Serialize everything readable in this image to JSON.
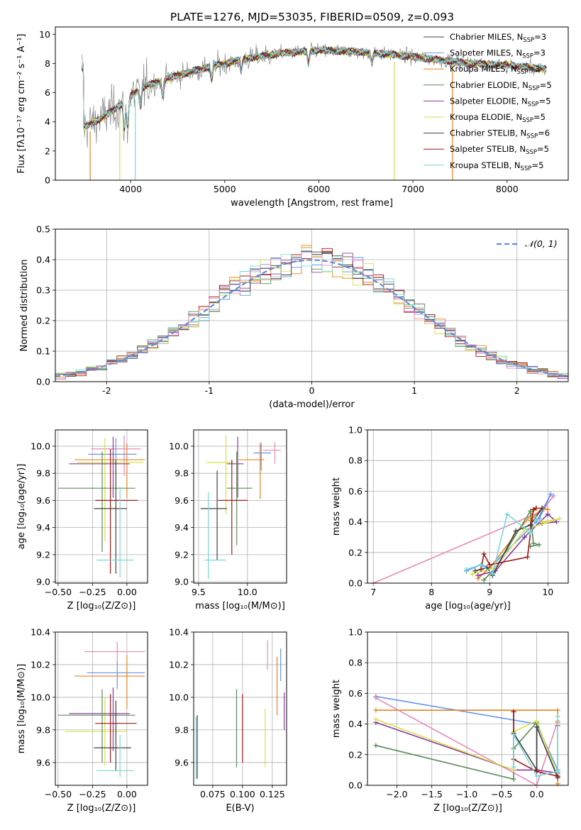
{
  "title": "PLATE=1276, MJD=53035, FIBERID=0509, z=0.093",
  "chart_data": [
    {
      "type": "line",
      "id": "spectrum",
      "title": "PLATE=1276, MJD=53035, FIBERID=0509, z=0.093",
      "xlabel": "wavelength [Angstrom, rest frame]",
      "ylabel": "Flux [fλ10⁻¹⁷ erg cm⁻² s⁻¹ A⁻¹]",
      "xlim": [
        3200,
        8650
      ],
      "ylim": [
        0,
        10.5
      ],
      "xticks": [
        4000,
        5000,
        6000,
        7000,
        8000
      ],
      "yticks": [
        0,
        2,
        4,
        6,
        8,
        10
      ],
      "grid": false,
      "legend_position": "top-right",
      "data_shape": [
        {
          "x": 3500,
          "y": 3.6
        },
        {
          "x": 3700,
          "y": 4.3
        },
        {
          "x": 3900,
          "y": 5.2
        },
        {
          "x": 4100,
          "y": 6.3
        },
        {
          "x": 4400,
          "y": 7.0
        },
        {
          "x": 4800,
          "y": 7.7
        },
        {
          "x": 5200,
          "y": 8.3
        },
        {
          "x": 5600,
          "y": 8.7
        },
        {
          "x": 6000,
          "y": 8.9
        },
        {
          "x": 6400,
          "y": 8.8
        },
        {
          "x": 6800,
          "y": 8.6
        },
        {
          "x": 7200,
          "y": 8.3
        },
        {
          "x": 7600,
          "y": 8.0
        },
        {
          "x": 8000,
          "y": 7.9
        },
        {
          "x": 8400,
          "y": 7.6
        }
      ],
      "series": [
        {
          "name": "Chabrier MILES, N_SSP=3",
          "color": "#404040"
        },
        {
          "name": "Salpeter MILES, N_SSP=3",
          "color": "#6495ed"
        },
        {
          "name": "Kroupa MILES, N_SSP=3",
          "color": "#e8821e"
        },
        {
          "name": "Chabrier ELODIE, N_SSP=5",
          "color": "#5a8a5a"
        },
        {
          "name": "Salpeter ELODIE, N_SSP=5",
          "color": "#8b3a9e"
        },
        {
          "name": "Kroupa ELODIE, N_SSP=5",
          "color": "#d6e04a"
        },
        {
          "name": "Chabrier STELIB, N_SSP=6",
          "color": "#3c3c3c"
        },
        {
          "name": "Salpeter STELIB, N_SSP=5",
          "color": "#a01818"
        },
        {
          "name": "Kroupa STELIB, N_SSP=5",
          "color": "#7ad8d8"
        }
      ]
    },
    {
      "type": "line",
      "id": "residuals",
      "xlabel": "(data-model)/error",
      "ylabel": "Normed distribution",
      "xlim": [
        -2.5,
        2.5
      ],
      "ylim": [
        0,
        0.5
      ],
      "xticks": [
        -2,
        -1,
        0,
        1,
        2
      ],
      "yticks": [
        0.0,
        0.1,
        0.2,
        0.3,
        0.4,
        0.5
      ],
      "grid": true,
      "legend_position": "top-right",
      "legend": "𝒩(0, 1)",
      "bin_width": 0.1,
      "histogram_colors": [
        "#6495ed",
        "#e8821e",
        "#5a8a5a",
        "#8b3a9e",
        "#d6e04a",
        "#404040",
        "#a01818",
        "#7ad8d8",
        "#e889b8"
      ]
    },
    {
      "type": "scatter",
      "id": "age-vs-Z",
      "xlabel": "Z [log₁₀(Z/Z⊙)]",
      "ylabel": "age  [log₁₀(age/yr)]",
      "xlim": [
        -0.52,
        0.15
      ],
      "ylim": [
        8.99,
        10.12
      ],
      "xticks": [
        -0.5,
        -0.25,
        0.0
      ],
      "xtick_labels": [
        "−0.50",
        "−0.25",
        "0.00"
      ],
      "yticks": [
        9.0,
        9.2,
        9.4,
        9.6,
        9.8,
        10.0
      ],
      "ytick_labels": [
        "9.0",
        "9.2",
        "9.4",
        "9.6",
        "9.8",
        "10.0"
      ],
      "grid": true,
      "points": [
        {
          "x": -0.02,
          "y": 9.98,
          "xerr": [
            0.24,
            0.12
          ],
          "yerr": [
            0.2,
            0.1
          ],
          "color": "#e889b8"
        },
        {
          "x": -0.08,
          "y": 9.94,
          "xerr": [
            0.2,
            0.15
          ],
          "yerr": [
            0.16,
            0.12
          ],
          "color": "#6495ed"
        },
        {
          "x": 0.0,
          "y": 9.9,
          "xerr": [
            0.38,
            0.13
          ],
          "yerr": [
            0.28,
            0.12
          ],
          "color": "#e8821e"
        },
        {
          "x": -0.16,
          "y": 9.88,
          "xerr": [
            0.2,
            0.28
          ],
          "yerr": [
            0.58,
            0.18
          ],
          "color": "#d6e04a"
        },
        {
          "x": -0.1,
          "y": 9.87,
          "xerr": [
            0.32,
            0.12
          ],
          "yerr": [
            0.25,
            0.2
          ],
          "color": "#8b3a9e"
        },
        {
          "x": -0.18,
          "y": 9.69,
          "xerr": [
            0.32,
            0.24
          ],
          "yerr": [
            0.47,
            0.27
          ],
          "color": "#5a8a5a"
        },
        {
          "x": -0.12,
          "y": 9.6,
          "xerr": [
            0.11,
            0.2
          ],
          "yerr": [
            0.54,
            0.38
          ],
          "color": "#a01818"
        },
        {
          "x": -0.08,
          "y": 9.54,
          "xerr": [
            0.16,
            0.08
          ],
          "yerr": [
            0.48,
            0.36
          ],
          "color": "#404040"
        },
        {
          "x": -0.05,
          "y": 9.16,
          "xerr": [
            0.17,
            0.1
          ],
          "yerr": [
            0.13,
            0.54
          ],
          "color": "#7ad8d8"
        }
      ]
    },
    {
      "type": "scatter",
      "id": "age-vs-mass",
      "xlabel": "mass [log₁₀(M/M⊙)]",
      "xlim": [
        9.45,
        10.4
      ],
      "ylim": [
        8.99,
        10.12
      ],
      "xticks": [
        9.5,
        10.0
      ],
      "xtick_labels": [
        "9.5",
        "10.0"
      ],
      "yticks": [
        9.0,
        9.2,
        9.4,
        9.6,
        9.8,
        10.0
      ],
      "ytick_labels": [
        "9.0",
        "9.2",
        "9.4",
        "9.6",
        "9.8",
        "10.0"
      ],
      "grid": true,
      "points": [
        {
          "x": 10.28,
          "y": 9.97,
          "xerr": [
            0.12,
            0.06
          ],
          "yerr": [
            0.1,
            0.06
          ],
          "color": "#e889b8"
        },
        {
          "x": 10.14,
          "y": 9.95,
          "xerr": [
            0.08,
            0.1
          ],
          "yerr": [
            0.13,
            0.08
          ],
          "color": "#6495ed"
        },
        {
          "x": 10.13,
          "y": 9.9,
          "xerr": [
            0.22,
            0.04
          ],
          "yerr": [
            0.29,
            0.12
          ],
          "color": "#e8821e"
        },
        {
          "x": 9.78,
          "y": 9.88,
          "xerr": [
            0.2,
            0.08
          ],
          "yerr": [
            0.38,
            0.2
          ],
          "color": "#d6e04a"
        },
        {
          "x": 9.9,
          "y": 9.87,
          "xerr": [
            0.11,
            0.06
          ],
          "yerr": [
            0.25,
            0.2
          ],
          "color": "#8b3a9e"
        },
        {
          "x": 9.89,
          "y": 9.69,
          "xerr": [
            0.1,
            0.16
          ],
          "yerr": [
            0.42,
            0.27
          ],
          "color": "#5a8a5a"
        },
        {
          "x": 9.84,
          "y": 9.6,
          "xerr": [
            0.14,
            0.16
          ],
          "yerr": [
            0.4,
            0.3
          ],
          "color": "#a01818"
        },
        {
          "x": 9.69,
          "y": 9.54,
          "xerr": [
            0.17,
            0.1
          ],
          "yerr": [
            0.38,
            0.28
          ],
          "color": "#404040"
        },
        {
          "x": 9.6,
          "y": 9.16,
          "xerr": [
            0.04,
            0.18
          ],
          "yerr": [
            0.14,
            0.5
          ],
          "color": "#7ad8d8"
        }
      ]
    },
    {
      "type": "line",
      "id": "weight-vs-age",
      "xlabel": "age  [log₁₀(age/yr)]",
      "ylabel": "mass weight",
      "xlim": [
        6.9,
        10.35
      ],
      "ylim": [
        0,
        1.0
      ],
      "xticks": [
        7,
        8,
        9,
        10
      ],
      "yticks": [
        0.0,
        0.2,
        0.4,
        0.6,
        0.8,
        1.0
      ],
      "grid": true,
      "series": [
        {
          "color": "#e889b8",
          "x": [
            7.0,
            9.9,
            10.1,
            9.95
          ],
          "y": [
            0.0,
            0.47,
            0.57,
            0.5
          ]
        },
        {
          "color": "#6495ed",
          "x": [
            8.6,
            8.85,
            9.0,
            9.8,
            10.05,
            9.85
          ],
          "y": [
            0.08,
            0.12,
            0.1,
            0.4,
            0.58,
            0.42
          ]
        },
        {
          "color": "#e8821e",
          "x": [
            8.8,
            9.0,
            9.8,
            10.0,
            9.9,
            9.7
          ],
          "y": [
            0.03,
            0.1,
            0.49,
            0.48,
            0.49,
            0.41
          ]
        },
        {
          "color": "#5a8a5a",
          "x": [
            8.9,
            9.1,
            9.7,
            9.75,
            9.85,
            9.7
          ],
          "y": [
            0.02,
            0.1,
            0.47,
            0.26,
            0.25,
            0.24
          ]
        },
        {
          "color": "#8b3a9e",
          "x": [
            8.8,
            9.1,
            9.6,
            10.0,
            10.15,
            9.9
          ],
          "y": [
            0.05,
            0.08,
            0.3,
            0.45,
            0.4,
            0.39
          ]
        },
        {
          "color": "#d6e04a",
          "x": [
            8.7,
            9.1,
            9.6,
            10.2,
            9.9
          ],
          "y": [
            0.06,
            0.1,
            0.35,
            0.42,
            0.4
          ]
        },
        {
          "color": "#404040",
          "x": [
            8.75,
            8.95,
            9.05,
            9.45,
            9.7,
            9.9
          ],
          "y": [
            0.08,
            0.1,
            0.05,
            0.34,
            0.38,
            0.49
          ]
        },
        {
          "color": "#a01818",
          "x": [
            8.85,
            8.9,
            9.0,
            9.65,
            9.75,
            9.8
          ],
          "y": [
            0.09,
            0.19,
            0.12,
            0.17,
            0.48,
            0.49
          ]
        },
        {
          "color": "#7ad8d8",
          "x": [
            8.6,
            8.85,
            9.05,
            9.3,
            9.7,
            9.8
          ],
          "y": [
            0.09,
            0.12,
            0.06,
            0.45,
            0.33,
            0.42
          ]
        }
      ]
    },
    {
      "type": "scatter",
      "id": "mass-vs-Z",
      "xlabel": "Z [log₁₀(Z/Z⊙)]",
      "ylabel": "mass [log₁₀(M/M⊙)]",
      "xlim": [
        -0.52,
        0.15
      ],
      "ylim": [
        9.46,
        10.4
      ],
      "xticks": [
        -0.5,
        -0.25,
        0.0
      ],
      "xtick_labels": [
        "−0.50",
        "−0.25",
        "0.00"
      ],
      "yticks": [
        9.6,
        9.8,
        10.0,
        10.2,
        10.4
      ],
      "ytick_labels": [
        "9.6",
        "9.8",
        "10.0",
        "10.2",
        "10.4"
      ],
      "grid": true,
      "points": [
        {
          "x": -0.07,
          "y": 10.28,
          "xerr": [
            0.24,
            0.2
          ],
          "yerr": [
            0.08,
            0.06
          ],
          "color": "#e889b8"
        },
        {
          "x": -0.07,
          "y": 10.15,
          "xerr": [
            0.22,
            0.2
          ],
          "yerr": [
            0.1,
            0.06
          ],
          "color": "#6495ed"
        },
        {
          "x": 0.0,
          "y": 10.13,
          "xerr": [
            0.38,
            0.13
          ],
          "yerr": [
            0.2,
            0.13
          ],
          "color": "#e8821e"
        },
        {
          "x": -0.16,
          "y": 9.79,
          "xerr": [
            0.29,
            0.16
          ],
          "yerr": [
            0.21,
            0.21
          ],
          "color": "#d6e04a"
        },
        {
          "x": -0.1,
          "y": 9.9,
          "xerr": [
            0.32,
            0.12
          ],
          "yerr": [
            0.23,
            0.16
          ],
          "color": "#8b3a9e"
        },
        {
          "x": -0.18,
          "y": 9.89,
          "xerr": [
            0.32,
            0.24
          ],
          "yerr": [
            0.29,
            0.16
          ],
          "color": "#5a8a5a"
        },
        {
          "x": -0.12,
          "y": 9.84,
          "xerr": [
            0.11,
            0.19
          ],
          "yerr": [
            0.24,
            0.18
          ],
          "color": "#a01818"
        },
        {
          "x": -0.08,
          "y": 9.69,
          "xerr": [
            0.16,
            0.11
          ],
          "yerr": [
            0.14,
            0.29
          ],
          "color": "#404040"
        },
        {
          "x": -0.05,
          "y": 9.55,
          "xerr": [
            0.17,
            0.1
          ],
          "yerr": [
            0.04,
            0.22
          ],
          "color": "#7ad8d8"
        }
      ]
    },
    {
      "type": "scatter",
      "id": "mass-vs-ebv",
      "xlabel": "E(B-V)",
      "xlim": [
        0.059,
        0.137
      ],
      "ylim": [
        9.46,
        10.4
      ],
      "xticks": [
        0.075,
        0.1,
        0.125
      ],
      "xtick_labels": [
        "0.075",
        "0.100",
        "0.125"
      ],
      "yticks": [
        9.6,
        9.8,
        10.0,
        10.2,
        10.4
      ],
      "ytick_labels": [
        "9.6",
        "9.8",
        "10.0",
        "10.2",
        "10.4"
      ],
      "grid": true,
      "points": [
        {
          "x": 0.121,
          "y": 10.27,
          "yerr": [
            0.1,
            0.08
          ],
          "color": "#e889b8"
        },
        {
          "x": 0.132,
          "y": 10.2,
          "yerr": [
            0.1,
            0.1
          ],
          "color": "#6495ed"
        },
        {
          "x": 0.129,
          "y": 10.09,
          "yerr": [
            0.2,
            0.16
          ],
          "color": "#e8821e"
        },
        {
          "x": 0.119,
          "y": 9.75,
          "yerr": [
            0.18,
            0.18
          ],
          "color": "#d6e04a"
        },
        {
          "x": 0.135,
          "y": 9.91,
          "yerr": [
            0.11,
            0.12
          ],
          "color": "#8b3a9e"
        },
        {
          "x": 0.095,
          "y": 9.81,
          "yerr": [
            0.24,
            0.24
          ],
          "color": "#5a8a5a"
        },
        {
          "x": 0.1,
          "y": 9.81,
          "yerr": [
            0.21,
            0.21
          ],
          "color": "#a01818"
        },
        {
          "x": 0.062,
          "y": 9.69,
          "yerr": [
            0.19,
            0.2
          ],
          "color": "#404040"
        },
        {
          "x": 0.061,
          "y": 9.69,
          "yerr": [
            0.19,
            0.19
          ],
          "color": "#7ad8d8"
        }
      ]
    },
    {
      "type": "line",
      "id": "weight-vs-Z",
      "xlabel": "Z [log₁₀(Z/Z⊙)]",
      "ylabel": "mass weight",
      "xlim": [
        -2.42,
        0.45
      ],
      "ylim": [
        0,
        1.0
      ],
      "xticks": [
        -2.0,
        -1.5,
        -1.0,
        -0.5,
        0.0
      ],
      "xtick_labels": [
        "−2.0",
        "−1.5",
        "−1.0",
        "−0.5",
        "0.0"
      ],
      "yticks": [
        0.0,
        0.2,
        0.4,
        0.6,
        0.8,
        1.0
      ],
      "grid": true,
      "series": [
        {
          "color": "#6495ed",
          "x": [
            -2.3,
            0.0,
            0.3,
            0.3
          ],
          "y": [
            0.58,
            0.4,
            0.1,
            0.05
          ]
        },
        {
          "color": "#e8821e",
          "x": [
            -2.3,
            0.3,
            0.3,
            0.3
          ],
          "y": [
            0.49,
            0.49,
            0.41,
            0.01
          ]
        },
        {
          "color": "#e889b8",
          "x": [
            -2.3,
            0.0,
            0.3
          ],
          "y": [
            0.57,
            0.0,
            0.42
          ]
        },
        {
          "color": "#5a8a5a",
          "x": [
            -2.3,
            -0.33,
            -0.33,
            0.0,
            0.0
          ],
          "y": [
            0.26,
            0.04,
            0.24,
            0.41,
            0.1
          ]
        },
        {
          "color": "#8b3a9e",
          "x": [
            -2.3,
            -0.33,
            0.0,
            0.3,
            0.3
          ],
          "y": [
            0.41,
            0.1,
            0.1,
            0.08,
            0.39
          ]
        },
        {
          "color": "#d6e04a",
          "x": [
            -2.3,
            -0.33,
            -0.33,
            0.0,
            0.3,
            0.3
          ],
          "y": [
            0.43,
            0.1,
            0.35,
            0.42,
            0.06,
            0.4
          ]
        },
        {
          "color": "#404040",
          "x": [
            -0.33,
            -0.33,
            0.0,
            0.0,
            0.3
          ],
          "y": [
            0.48,
            0.34,
            0.1,
            0.38,
            0.05
          ]
        },
        {
          "color": "#a01818",
          "x": [
            -0.33,
            -0.33,
            0.0,
            0.3
          ],
          "y": [
            0.48,
            0.17,
            0.09,
            0.06
          ]
        },
        {
          "color": "#7ad8d8",
          "x": [
            -0.33,
            -0.33,
            0.0,
            0.3,
            0.3
          ],
          "y": [
            0.12,
            0.33,
            0.06,
            0.09,
            0.45
          ]
        }
      ]
    }
  ]
}
